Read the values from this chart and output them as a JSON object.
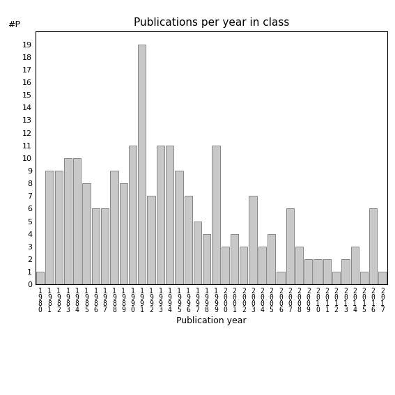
{
  "title": "Publications per year in class",
  "xlabel": "Publication year",
  "ylabel": "#P",
  "bar_color": "#c8c8c8",
  "bar_edgecolor": "#888888",
  "years": [
    "1980",
    "1981",
    "1982",
    "1983",
    "1984",
    "1985",
    "1986",
    "1987",
    "1988",
    "1989",
    "1990",
    "1991",
    "1992",
    "1993",
    "1994",
    "1995",
    "1996",
    "1997",
    "1998",
    "1999",
    "2000",
    "2001",
    "2002",
    "2003",
    "2004",
    "2005",
    "2006",
    "2007",
    "2008",
    "2009",
    "2010",
    "2011",
    "2012",
    "2013",
    "2014",
    "2015",
    "2016",
    "2017"
  ],
  "values": [
    1,
    9,
    9,
    10,
    10,
    8,
    6,
    6,
    9,
    8,
    11,
    19,
    7,
    11,
    11,
    9,
    7,
    5,
    4,
    11,
    3,
    4,
    3,
    7,
    3,
    4,
    1,
    6,
    3,
    2,
    2,
    2,
    1,
    2,
    3,
    1,
    6,
    1
  ],
  "ylim": [
    0,
    20
  ],
  "yticks": [
    0,
    1,
    2,
    3,
    4,
    5,
    6,
    7,
    8,
    9,
    10,
    11,
    12,
    13,
    14,
    15,
    16,
    17,
    18,
    19
  ],
  "background_color": "#ffffff",
  "tick_fontsize": 8,
  "label_fontsize": 9,
  "title_fontsize": 11
}
